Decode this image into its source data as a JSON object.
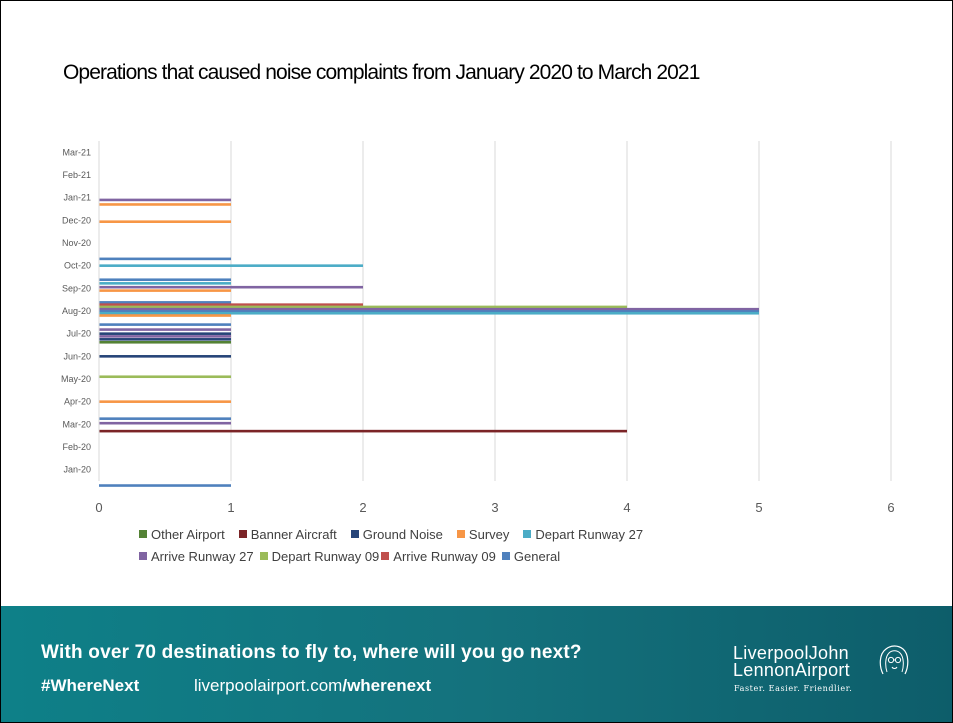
{
  "slide": {
    "title": "Operations that caused noise complaints from January 2020 to March 2021"
  },
  "footer": {
    "headline": "With over 70 destinations to fly to, where will you go next?",
    "hashtag": "#WhereNext",
    "url_main": "liverpoolairport.com",
    "url_bold": "/wherenext",
    "logo": {
      "line1": "LiverpoolJohn",
      "line2": "LennonAirport",
      "tagline": "Faster. Easier. Friendlier.",
      "mark": "john-lennon-portrait-icon"
    }
  },
  "chart_data": {
    "type": "bar",
    "orientation": "horizontal",
    "title": "",
    "xlabel": "",
    "ylabel": "",
    "xlim": [
      0,
      6
    ],
    "x_ticks": [
      "0",
      "1",
      "2",
      "3",
      "4",
      "5",
      "6"
    ],
    "grid": "vertical",
    "legend_position": "bottom",
    "categories": [
      "Jan-20",
      "Feb-20",
      "Mar-20",
      "Apr-20",
      "May-20",
      "Jun-20",
      "Jul-20",
      "Aug-20",
      "Sep-20",
      "Oct-20",
      "Nov-20",
      "Dec-20",
      "Jan-21",
      "Feb-21",
      "Mar-21"
    ],
    "series": [
      {
        "name": "Other Airport",
        "color": "#548235"
      },
      {
        "name": "Banner Aircraft",
        "color": "#7b2427"
      },
      {
        "name": "Ground Noise",
        "color": "#264478"
      },
      {
        "name": "Survey",
        "color": "#f79646"
      },
      {
        "name": "Depart Runway 27",
        "color": "#4bacc6"
      },
      {
        "name": "Arrive Runway 27",
        "color": "#8064a2"
      },
      {
        "name": "Depart Runway 09",
        "color": "#9bbb59"
      },
      {
        "name": "Arrive Runway 09",
        "color": "#c0504d"
      },
      {
        "name": "General",
        "color": "#4f81bd"
      }
    ],
    "bars": [
      {
        "category": "Jan-20",
        "series": "General",
        "value": 1,
        "slot": 0.7
      },
      {
        "category": "Mar-20",
        "series": "General",
        "value": 1,
        "slot": -0.25
      },
      {
        "category": "Mar-20",
        "series": "Arrive Runway 27",
        "value": 1,
        "slot": -0.05
      },
      {
        "category": "Mar-20",
        "series": "Banner Aircraft",
        "value": 4,
        "slot": 0.3
      },
      {
        "category": "Apr-20",
        "series": "Survey",
        "value": 1,
        "slot": 0
      },
      {
        "category": "May-20",
        "series": "Depart Runway 09",
        "value": 1,
        "slot": -0.1
      },
      {
        "category": "Jun-20",
        "series": "Ground Noise",
        "value": 1,
        "slot": 0
      },
      {
        "category": "Jul-20",
        "series": "General",
        "value": 1,
        "slot": -0.4
      },
      {
        "category": "Jul-20",
        "series": "Arrive Runway 27",
        "value": 1,
        "slot": -0.18
      },
      {
        "category": "Jul-20",
        "series": "Ground Noise",
        "value": 1,
        "slot": 0
      },
      {
        "category": "Jul-20",
        "series": "Arrive Runway 27",
        "value": 1,
        "slot": 0.12
      },
      {
        "category": "Jul-20",
        "series": "Ground Noise",
        "value": 1,
        "slot": 0.25
      },
      {
        "category": "Jul-20",
        "series": "Other Airport",
        "value": 1,
        "slot": 0.38
      },
      {
        "category": "Aug-20",
        "series": "General",
        "value": 1,
        "slot": -0.38
      },
      {
        "category": "Aug-20",
        "series": "Arrive Runway 09",
        "value": 2,
        "slot": -0.28
      },
      {
        "category": "Aug-20",
        "series": "Depart Runway 09",
        "value": 4,
        "slot": -0.18
      },
      {
        "category": "Aug-20",
        "series": "Arrive Runway 27",
        "value": 5,
        "slot": -0.08
      },
      {
        "category": "Aug-20",
        "series": "General",
        "value": 5,
        "slot": 0.02
      },
      {
        "category": "Aug-20",
        "series": "Depart Runway 27",
        "value": 5,
        "slot": 0.1
      },
      {
        "category": "Aug-20",
        "series": "Survey",
        "value": 1,
        "slot": 0.2
      },
      {
        "category": "Sep-20",
        "series": "General",
        "value": 1,
        "slot": -0.38
      },
      {
        "category": "Sep-20",
        "series": "Depart Runway 27",
        "value": 1,
        "slot": -0.22
      },
      {
        "category": "Sep-20",
        "series": "Arrive Runway 27",
        "value": 2,
        "slot": -0.05
      },
      {
        "category": "Sep-20",
        "series": "Survey",
        "value": 1,
        "slot": 0.1
      },
      {
        "category": "Oct-20",
        "series": "General",
        "value": 1,
        "slot": -0.3
      },
      {
        "category": "Oct-20",
        "series": "Depart Runway 27",
        "value": 2,
        "slot": 0
      },
      {
        "category": "Dec-20",
        "series": "Survey",
        "value": 1,
        "slot": 0.06
      },
      {
        "category": "Jan-21",
        "series": "Arrive Runway 27",
        "value": 1,
        "slot": 0.1
      },
      {
        "category": "Jan-21",
        "series": "Survey",
        "value": 1,
        "slot": 0.3
      }
    ]
  }
}
